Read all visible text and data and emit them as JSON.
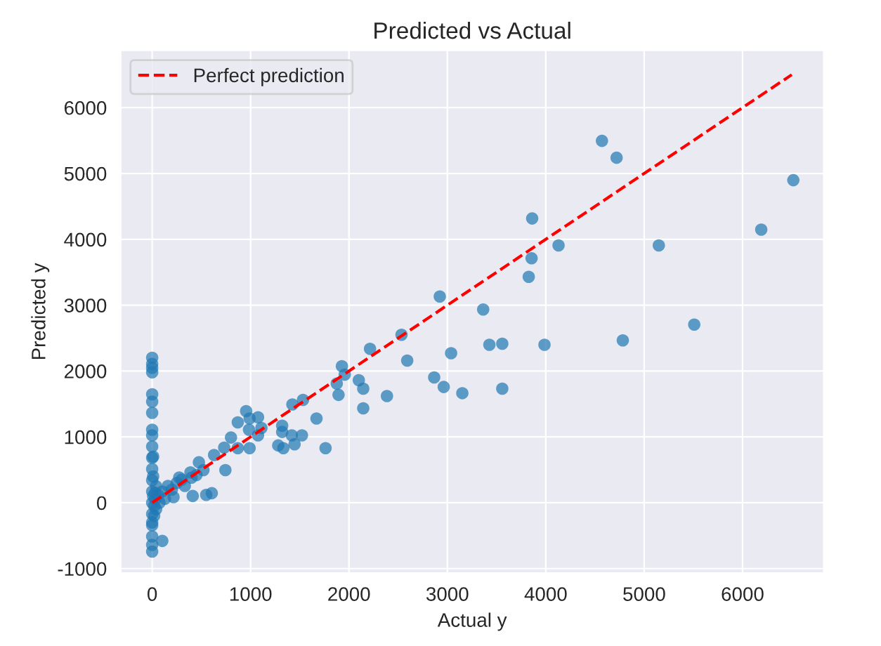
{
  "chart_data": {
    "type": "scatter",
    "title": "Predicted vs Actual",
    "xlabel": "Actual y",
    "ylabel": "Predicted y",
    "xlim": [
      -320,
      6825
    ],
    "ylim": [
      -1067,
      6869
    ],
    "xticks": [
      0,
      1000,
      2000,
      3000,
      4000,
      5000,
      6000
    ],
    "yticks": [
      -1000,
      0,
      1000,
      2000,
      3000,
      4000,
      5000,
      6000
    ],
    "grid": true,
    "legend": "top left",
    "series": [
      {
        "color": "#1f77b4",
        "marker": "circle",
        "x": [
          4571,
          4720,
          6516,
          3862,
          4130,
          3856,
          3827,
          5149,
          6190,
          5509,
          4783,
          3987,
          3364,
          3427,
          3558,
          2923,
          3038,
          2534,
          2592,
          2214,
          2866,
          2963,
          3152,
          3558,
          2386,
          1928,
          1957,
          1876,
          1894,
          2100,
          2145,
          2145,
          1670,
          1762,
          1533,
          1425,
          1321,
          1321,
          1281,
          1333,
          1419,
          1522,
          1447,
          955,
          1076,
          990,
          1110,
          1076,
          984,
          870,
          990,
          801,
          870,
          744,
          732,
          629,
          475,
          521,
          389,
          412,
          549,
          606,
          103,
          160,
          275,
          332,
          217,
          103,
          74,
          200,
          250,
          300,
          400,
          450,
          130,
          60,
          40,
          30,
          20,
          0,
          0,
          0,
          0,
          0,
          0,
          0,
          0,
          0,
          0,
          0,
          0,
          0,
          0,
          0,
          0,
          0,
          0,
          0,
          0,
          0,
          10,
          10,
          10,
          20,
          30,
          40
        ],
        "values": [
          5495,
          5239,
          4898,
          4317,
          3908,
          3712,
          3430,
          3908,
          4147,
          2705,
          2466,
          2398,
          2935,
          2398,
          2415,
          3131,
          2270,
          2551,
          2159,
          2338,
          1903,
          1758,
          1664,
          1732,
          1621,
          2073,
          1945,
          1809,
          1638,
          1860,
          1732,
          1433,
          1280,
          828,
          1561,
          1493,
          1169,
          1075,
          870,
          828,
          1024,
          1024,
          887,
          1391,
          1297,
          1280,
          1135,
          1024,
          1109,
          1220,
          828,
          990,
          828,
          495,
          836,
          725,
          614,
          495,
          461,
          102,
          119,
          145,
          -580,
          256,
          384,
          256,
          85,
          170,
          0,
          200,
          300,
          350,
          380,
          420,
          60,
          120,
          -100,
          50,
          -200,
          2201,
          2107,
          2048,
          1980,
          1647,
          1536,
          1365,
          1109,
          1024,
          853,
          683,
          512,
          341,
          171,
          0,
          -171,
          -341,
          -512,
          -640,
          -742,
          -300,
          700,
          400,
          100,
          -50,
          150,
          250
        ]
      },
      {
        "type": "line",
        "name": "Perfect prediction",
        "color": "#ff0000",
        "line_style": "dashed",
        "marker": "none",
        "x": [
          0,
          6500
        ],
        "values": [
          0,
          6500
        ]
      }
    ]
  }
}
